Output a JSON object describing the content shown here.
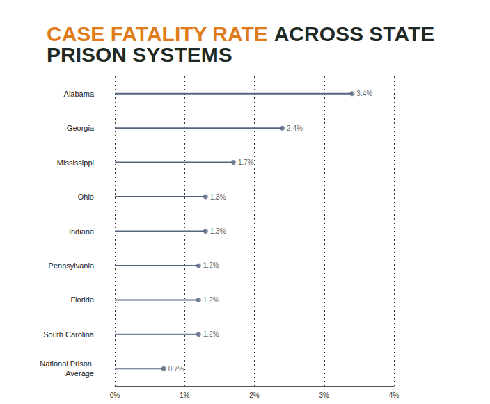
{
  "chart_data": {
    "type": "bar",
    "orientation": "horizontal",
    "title": "CASE FATALITY RATE ACROSS STATE PRISON SYSTEMS",
    "title_highlight": "CASE FATALITY RATE",
    "categories": [
      "Alabama",
      "Georgia",
      "Mississippi",
      "Ohio",
      "Indiana",
      "Pennsylvania",
      "Florida",
      "South Carolina",
      "National Prison Average"
    ],
    "values": [
      3.4,
      2.4,
      1.7,
      1.3,
      1.3,
      1.2,
      1.2,
      1.2,
      0.7
    ],
    "value_labels": [
      "3.4%",
      "2.4%",
      "1.7%",
      "1.3%",
      "1.3%",
      "1.2%",
      "1.2%",
      "1.2%",
      "0.7%"
    ],
    "color": "#56667f",
    "marker": "circle",
    "xlim": [
      0,
      4
    ],
    "xticks": [
      {
        "value": 0,
        "label": "0%"
      },
      {
        "value": 1,
        "label": "1%"
      },
      {
        "value": 2,
        "label": "2%"
      },
      {
        "value": 3,
        "label": "3%"
      },
      {
        "value": 4,
        "label": "4%"
      }
    ],
    "grid": true,
    "data_labels": true
  }
}
